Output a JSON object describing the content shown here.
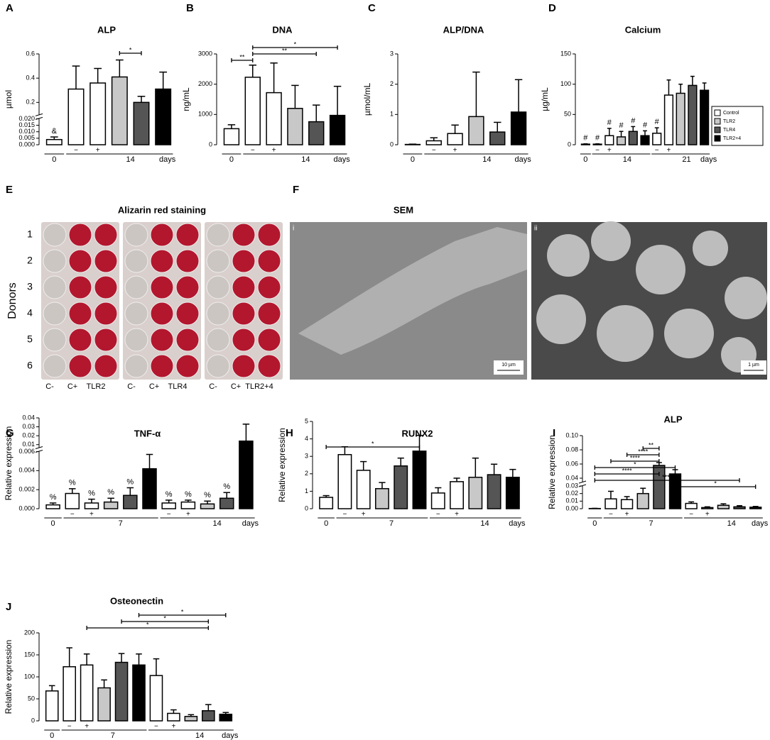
{
  "panel_e": {
    "letter": "E",
    "title": "Alizarin red staining",
    "y_label": "Donors",
    "rows": [
      "1",
      "2",
      "3",
      "4",
      "5",
      "6"
    ],
    "columns": [
      [
        "C-",
        "C+",
        "TLR2"
      ],
      [
        "C-",
        "C+",
        "TLR4"
      ],
      [
        "C-",
        "C+",
        "TLR2+4"
      ]
    ]
  },
  "panel_f": {
    "letter": "F",
    "title": "SEM",
    "images": [
      {
        "label": "i",
        "scale": "10 µm"
      },
      {
        "label": "ii",
        "scale": "1 µm"
      }
    ]
  },
  "chart_data": [
    {
      "type": "bar",
      "letter": "A",
      "title": "ALP",
      "y_label": "µmol",
      "y_segments": [
        {
          "ylim": [
            0,
            0.02
          ],
          "yticks": [
            {
              "value": 0,
              "label": "0.000"
            },
            0.005,
            {
              "value": 0.01,
              "label": "0.010"
            },
            0.015,
            {
              "value": 0.02,
              "label": "0.020"
            }
          ]
        },
        {
          "ylim": [
            0.1,
            0.6
          ],
          "yticks": [
            0.2,
            0.4,
            0.6
          ]
        }
      ],
      "categories": [
        null,
        "−",
        "+",
        null,
        null,
        null
      ],
      "values": [
        0.004,
        0.31,
        0.36,
        0.41,
        0.2,
        0.31
      ],
      "errors": [
        0.002,
        0.19,
        0.12,
        0.14,
        0.05,
        0.14
      ],
      "colors": [
        "#ffffff",
        "#ffffff",
        "#ffffff",
        "#c8c8c8",
        "#555555",
        "#000000"
      ],
      "bar_labels": [
        "&",
        null,
        null,
        null,
        null,
        null
      ],
      "groups": [
        {
          "label": "0",
          "bars": [
            0,
            0
          ]
        },
        {
          "label": "14",
          "bars": [
            1,
            5
          ]
        }
      ],
      "x_unit": "days",
      "brackets": [
        {
          "label": "*",
          "bars": [
            3,
            4
          ]
        }
      ]
    },
    {
      "type": "bar",
      "letter": "B",
      "title": "DNA",
      "y_label": "ng/mL",
      "ylim": [
        0,
        3000
      ],
      "yticks": [
        0,
        1000,
        2000,
        3000
      ],
      "categories": [
        null,
        "−",
        "+",
        null,
        null,
        null
      ],
      "values": [
        530,
        2230,
        1720,
        1200,
        760,
        970
      ],
      "errors": [
        130,
        400,
        980,
        760,
        550,
        960
      ],
      "colors": [
        "#ffffff",
        "#ffffff",
        "#ffffff",
        "#c8c8c8",
        "#555555",
        "#000000"
      ],
      "groups": [
        {
          "label": "0",
          "bars": [
            0,
            0
          ]
        },
        {
          "label": "14",
          "bars": [
            1,
            5
          ]
        }
      ],
      "x_unit": "days",
      "brackets": [
        {
          "label": "*",
          "bars": [
            1,
            5
          ]
        },
        {
          "label": "**",
          "bars": [
            1,
            4
          ]
        },
        {
          "label": "**",
          "bars": [
            0,
            1
          ]
        }
      ]
    },
    {
      "type": "bar",
      "letter": "C",
      "title": "ALP/DNA",
      "y_label": "µmol/mL",
      "ylim": [
        0,
        3
      ],
      "yticks": [
        0,
        1,
        2,
        3
      ],
      "categories": [
        null,
        "−",
        "+",
        null,
        null,
        null
      ],
      "values": [
        0.01,
        0.13,
        0.37,
        0.93,
        0.42,
        1.08
      ],
      "errors": [
        0.01,
        0.1,
        0.28,
        1.47,
        0.32,
        1.07
      ],
      "colors": [
        "#ffffff",
        "#ffffff",
        "#ffffff",
        "#c8c8c8",
        "#555555",
        "#000000"
      ],
      "groups": [
        {
          "label": "0",
          "bars": [
            0,
            0
          ]
        },
        {
          "label": "14",
          "bars": [
            1,
            5
          ]
        }
      ],
      "x_unit": "days"
    },
    {
      "type": "bar",
      "letter": "D",
      "title": "Calcium",
      "y_label": "µg/mL",
      "ylim": [
        0,
        150
      ],
      "yticks": [
        0,
        50,
        100,
        150
      ],
      "categories": [
        null,
        "−",
        "+",
        null,
        null,
        null,
        "−",
        "+",
        null,
        null,
        null
      ],
      "values": [
        1,
        1,
        15,
        13,
        22,
        15,
        19,
        82,
        85,
        98,
        90
      ],
      "errors": [
        0.5,
        0.5,
        12,
        9,
        8,
        8,
        9,
        25,
        15,
        15,
        12
      ],
      "colors": [
        "#ffffff",
        "#ffffff",
        "#ffffff",
        "#c8c8c8",
        "#555555",
        "#000000",
        "#ffffff",
        "#ffffff",
        "#c8c8c8",
        "#555555",
        "#000000"
      ],
      "bar_labels": [
        "#",
        "#",
        "#",
        "#",
        "#",
        "#",
        "#",
        null,
        null,
        null,
        null
      ],
      "groups": [
        {
          "label": "0",
          "bars": [
            0,
            0
          ]
        },
        {
          "label": "14",
          "bars": [
            1,
            5
          ]
        },
        {
          "label": "21",
          "bars": [
            6,
            10
          ]
        }
      ],
      "x_unit": "days",
      "legend": [
        {
          "name": "Control",
          "color": "#ffffff"
        },
        {
          "name": "TLR2",
          "color": "#c8c8c8"
        },
        {
          "name": "TLR4",
          "color": "#555555"
        },
        {
          "name": "TLR2+4",
          "color": "#000000"
        }
      ]
    },
    {
      "type": "bar",
      "letter": "G",
      "title": "TNF-α",
      "y_label": "Relative expression",
      "y_segments": [
        {
          "ylim": [
            0,
            0.006
          ],
          "yticks": [
            {
              "value": 0,
              "label": "0.000"
            },
            0.002,
            0.004,
            0.006
          ]
        },
        {
          "ylim": [
            0.007,
            0.04
          ],
          "yticks": [
            0.01,
            0.02,
            0.03,
            0.04
          ]
        }
      ],
      "categories": [
        null,
        "−",
        "+",
        null,
        null,
        null,
        "−",
        "+",
        null,
        null,
        null
      ],
      "values": [
        0.0004,
        0.0016,
        0.0006,
        0.0007,
        0.0014,
        0.0042,
        0.0006,
        0.0007,
        0.0005,
        0.0011,
        0.014
      ],
      "errors": [
        0.0002,
        0.0005,
        0.0004,
        0.0004,
        0.0008,
        0.0015,
        0.0003,
        0.0002,
        0.0003,
        0.0006,
        0.019
      ],
      "colors": [
        "#ffffff",
        "#ffffff",
        "#ffffff",
        "#c8c8c8",
        "#555555",
        "#000000",
        "#ffffff",
        "#ffffff",
        "#c8c8c8",
        "#555555",
        "#000000"
      ],
      "bar_labels": [
        "%",
        "%",
        "%",
        "%",
        "%",
        null,
        "%",
        "%",
        "%",
        "%",
        null
      ],
      "groups": [
        {
          "label": "0",
          "bars": [
            0,
            0
          ]
        },
        {
          "label": "7",
          "bars": [
            1,
            5
          ]
        },
        {
          "label": "14",
          "bars": [
            6,
            10
          ]
        }
      ],
      "x_unit": "days"
    },
    {
      "type": "bar",
      "letter": "H",
      "title": "RUNX2",
      "y_label": "Relative expression",
      "ylim": [
        0,
        5
      ],
      "yticks": [
        0,
        1,
        2,
        3,
        4,
        5
      ],
      "categories": [
        null,
        "−",
        "+",
        null,
        null,
        null,
        "−",
        "+",
        null,
        null,
        null
      ],
      "values": [
        0.65,
        3.1,
        2.2,
        1.15,
        2.45,
        3.3,
        0.9,
        1.55,
        1.8,
        1.95,
        1.8
      ],
      "errors": [
        0.1,
        0.45,
        0.5,
        0.35,
        0.45,
        0.9,
        0.3,
        0.2,
        1.1,
        0.6,
        0.45
      ],
      "colors": [
        "#ffffff",
        "#ffffff",
        "#ffffff",
        "#c8c8c8",
        "#555555",
        "#000000",
        "#ffffff",
        "#ffffff",
        "#c8c8c8",
        "#555555",
        "#000000"
      ],
      "groups": [
        {
          "label": "0",
          "bars": [
            0,
            0
          ]
        },
        {
          "label": "7",
          "bars": [
            1,
            5
          ]
        },
        {
          "label": "14",
          "bars": [
            6,
            10
          ]
        }
      ],
      "x_unit": "days",
      "brackets": [
        {
          "label": "*",
          "bars": [
            0,
            5
          ]
        }
      ]
    },
    {
      "type": "bar",
      "letter": "I",
      "title": "ALP",
      "y_label": "Relative expression",
      "y_segments": [
        {
          "ylim": [
            0,
            0.03
          ],
          "yticks": [
            {
              "value": 0,
              "label": "0.00"
            },
            0.01,
            0.02,
            0.03
          ]
        },
        {
          "ylim": [
            0.035,
            0.1
          ],
          "yticks": [
            0.04,
            0.06,
            0.08,
            {
              "value": 0.1,
              "label": "0.10"
            }
          ]
        }
      ],
      "categories": [
        null,
        "−",
        "+",
        null,
        null,
        null,
        "−",
        "+",
        null,
        null,
        null
      ],
      "values": [
        0.0003,
        0.013,
        0.012,
        0.02,
        0.058,
        0.046,
        0.007,
        0.0015,
        0.0045,
        0.0025,
        0.002
      ],
      "errors": [
        0.0002,
        0.01,
        0.004,
        0.007,
        0.004,
        0.006,
        0.002,
        0.001,
        0.002,
        0.0015,
        0.001
      ],
      "colors": [
        "#ffffff",
        "#ffffff",
        "#ffffff",
        "#c8c8c8",
        "#555555",
        "#000000",
        "#ffffff",
        "#ffffff",
        "#c8c8c8",
        "#555555",
        "#000000"
      ],
      "groups": [
        {
          "label": "0",
          "bars": [
            0,
            0
          ]
        },
        {
          "label": "7",
          "bars": [
            1,
            5
          ]
        },
        {
          "label": "14",
          "bars": [
            6,
            10
          ]
        }
      ],
      "x_unit": "days",
      "brackets": [
        {
          "label": "**",
          "bars": [
            3,
            4
          ]
        },
        {
          "label": "****",
          "bars": [
            2,
            4
          ]
        },
        {
          "label": "****",
          "bars": [
            1,
            4
          ]
        },
        {
          "label": "*",
          "bars": [
            0,
            5
          ]
        },
        {
          "label": "****",
          "bars": [
            0,
            4
          ]
        },
        {
          "label": "****",
          "bars": [
            0,
            9
          ]
        },
        {
          "label": "*",
          "bars": [
            5,
            10
          ]
        }
      ]
    },
    {
      "type": "bar",
      "letter": "J",
      "title": "Osteonectin",
      "y_label": "Relative expression",
      "ylim": [
        0,
        200
      ],
      "yticks": [
        0,
        50,
        100,
        150,
        200
      ],
      "categories": [
        null,
        "−",
        "+",
        null,
        null,
        null,
        "−",
        "+",
        null,
        null,
        null
      ],
      "values": [
        68,
        123,
        127,
        75,
        133,
        127,
        103,
        17,
        10,
        23,
        15
      ],
      "errors": [
        12,
        43,
        25,
        18,
        20,
        25,
        38,
        8,
        4,
        14,
        4
      ],
      "colors": [
        "#ffffff",
        "#ffffff",
        "#ffffff",
        "#c8c8c8",
        "#555555",
        "#000000",
        "#ffffff",
        "#ffffff",
        "#c8c8c8",
        "#555555",
        "#000000"
      ],
      "groups": [
        {
          "label": "0",
          "bars": [
            0,
            0
          ]
        },
        {
          "label": "7",
          "bars": [
            1,
            5
          ]
        },
        {
          "label": "14",
          "bars": [
            6,
            10
          ]
        }
      ],
      "x_unit": "days",
      "brackets": [
        {
          "label": "*",
          "bars": [
            5,
            10
          ]
        },
        {
          "label": "*",
          "bars": [
            4,
            9
          ]
        },
        {
          "label": "*",
          "bars": [
            2,
            9
          ]
        }
      ]
    }
  ]
}
